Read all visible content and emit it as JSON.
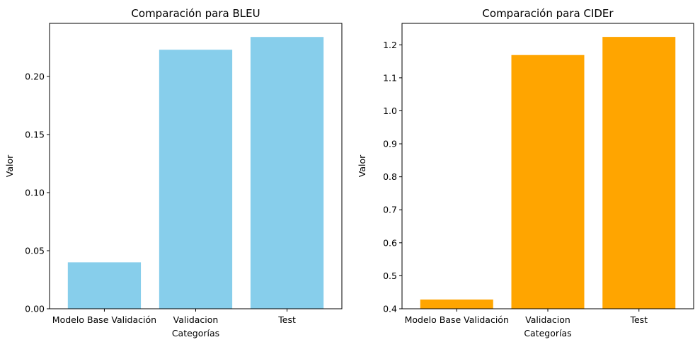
{
  "chart_data": [
    {
      "type": "bar",
      "title": "Comparación para BLEU",
      "xlabel": "Categorías",
      "ylabel": "Valor",
      "categories": [
        "Modelo Base Validación",
        "Validacion",
        "Test"
      ],
      "values": [
        0.04,
        0.223,
        0.234
      ],
      "ylim": [
        0,
        0.2457
      ],
      "yticks": [
        0.0,
        0.05,
        0.1,
        0.15,
        0.2,
        0.25
      ],
      "ytick_labels": [
        "0.00",
        "0.05",
        "0.10",
        "0.15",
        "0.20"
      ],
      "color": "#87CEEB",
      "grid": false,
      "legend": "none"
    },
    {
      "type": "bar",
      "title": "Comparación para CIDEr",
      "xlabel": "Categorías",
      "ylabel": "Valor",
      "categories": [
        "Modelo Base Validación",
        "Validacion",
        "Test"
      ],
      "values": [
        0.428,
        1.169,
        1.224
      ],
      "ylim": [
        0.4,
        1.265
      ],
      "yticks": [
        0.4,
        0.5,
        0.6,
        0.7,
        0.8,
        0.9,
        1.0,
        1.1,
        1.2
      ],
      "ytick_labels": [
        "0.4",
        "0.5",
        "0.6",
        "0.7",
        "0.8",
        "0.9",
        "1.0",
        "1.1",
        "1.2"
      ],
      "color": "#FFA500",
      "grid": false,
      "legend": "none"
    }
  ]
}
